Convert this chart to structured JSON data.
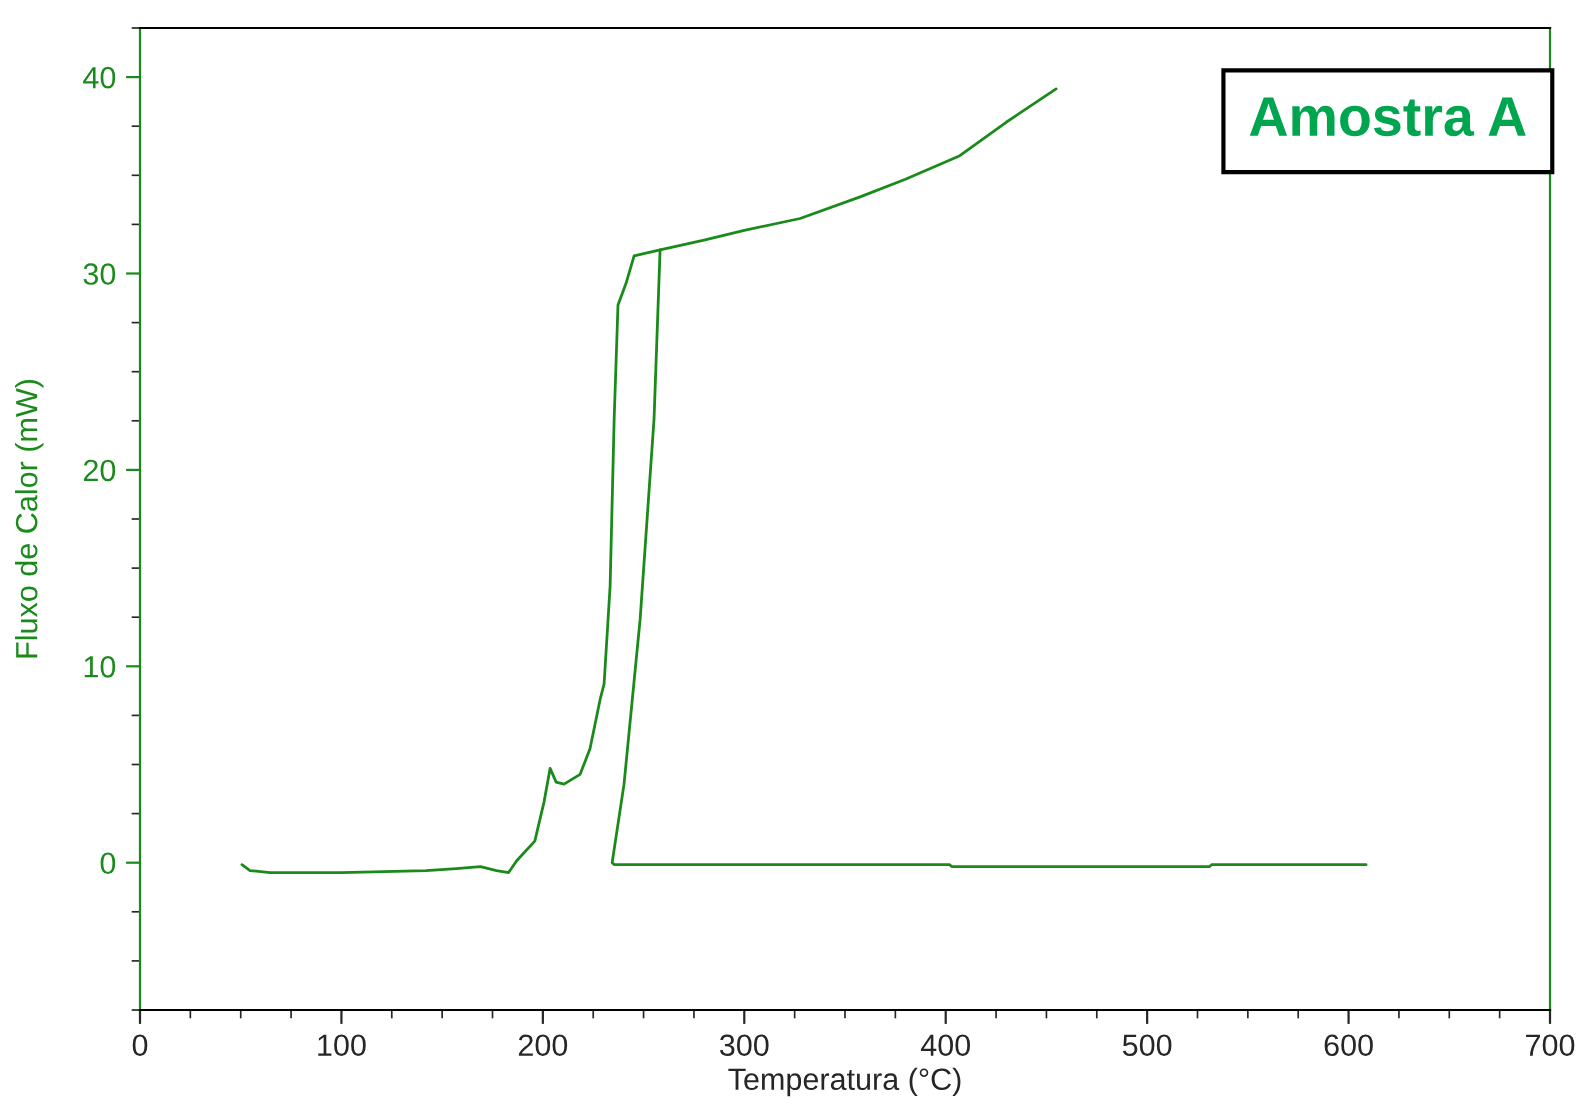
{
  "chart_data": {
    "type": "line",
    "xlabel": "Temperatura (°C)",
    "ylabel": "Fluxo de Calor (mW)",
    "annotations": [
      "Amostra A"
    ],
    "series": [
      {
        "color": "#1a8a1a",
        "x": [
          50.6,
          54.6,
          64.5,
          100,
          142,
          157,
          169,
          177,
          183,
          187,
          196,
          200.6,
          203.6,
          206.6,
          210.5,
          218.5,
          223.4,
          228.4,
          230.4,
          233.4,
          235.4,
          237.3,
          241.3,
          245.3,
          258.2,
          280,
          300,
          327.7,
          357.5,
          380,
          407,
          430,
          454.8
        ],
        "values": [
          -0.1,
          -0.4,
          -0.5,
          -0.5,
          -0.4,
          -0.3,
          -0.2,
          -0.4,
          -0.5,
          0.1,
          1.1,
          3.1,
          4.8,
          4.1,
          4.0,
          4.5,
          5.8,
          8.3,
          9.1,
          14.1,
          22.6,
          28.4,
          29.5,
          30.9,
          31.2,
          31.7,
          32.2,
          32.8,
          33.9,
          34.8,
          36.0,
          37.7,
          39.4
        ]
      },
      {
        "color": "#1a8a1a",
        "x": [
          258.2,
          255.2,
          248.3,
          240.3,
          234.4,
          235.5,
          402,
          403,
          531,
          532,
          608.7
        ],
        "values": [
          31.2,
          22.6,
          12.4,
          4.0,
          0.0,
          -0.1,
          -0.1,
          -0.2,
          -0.2,
          -0.1,
          -0.1
        ]
      }
    ],
    "xlim": [
      0,
      700
    ],
    "xticks": [
      0,
      100,
      200,
      300,
      400,
      500,
      600,
      700
    ],
    "ylim": [
      -7.5,
      42.5
    ],
    "yticks": [
      0,
      10,
      20,
      30,
      40
    ],
    "grid": false,
    "legend": false,
    "marker": "none",
    "line_style": "solid"
  }
}
